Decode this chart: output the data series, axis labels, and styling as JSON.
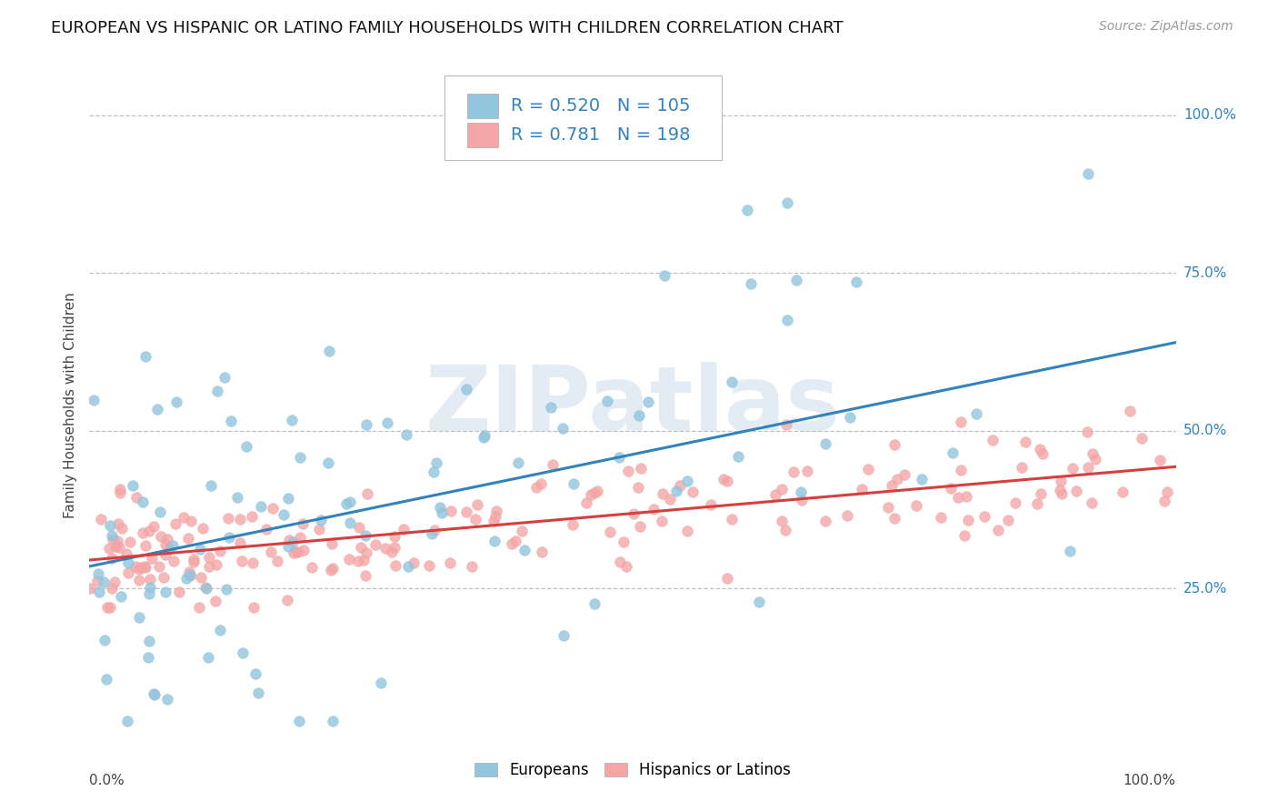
{
  "title": "EUROPEAN VS HISPANIC OR LATINO FAMILY HOUSEHOLDS WITH CHILDREN CORRELATION CHART",
  "source": "Source: ZipAtlas.com",
  "ylabel_label": "Family Households with Children",
  "ytick_labels": [
    "25.0%",
    "50.0%",
    "75.0%",
    "100.0%"
  ],
  "ytick_positions": [
    0.25,
    0.5,
    0.75,
    1.0
  ],
  "legend_label1": "Europeans",
  "legend_label2": "Hispanics or Latinos",
  "R1": "0.520",
  "N1": "105",
  "R2": "0.781",
  "N2": "198",
  "blue_color": "#92c5de",
  "blue_line_color": "#3182bd",
  "pink_color": "#f4a6a6",
  "pink_line_color": "#d63f3f",
  "watermark": "ZIPatlas",
  "watermark_color": "#c8d8ea",
  "background_color": "#ffffff",
  "grid_color": "#c0c0c0",
  "title_fontsize": 13,
  "axis_label_fontsize": 11,
  "tick_fontsize": 11,
  "legend_fontsize": 14,
  "source_fontsize": 10,
  "n_blue": 105,
  "n_pink": 198,
  "blue_slope": 0.355,
  "blue_intercept": 0.285,
  "pink_slope": 0.148,
  "pink_intercept": 0.295,
  "ymin": 0.0,
  "ymax": 1.08,
  "xmin": 0.0,
  "xmax": 1.0
}
